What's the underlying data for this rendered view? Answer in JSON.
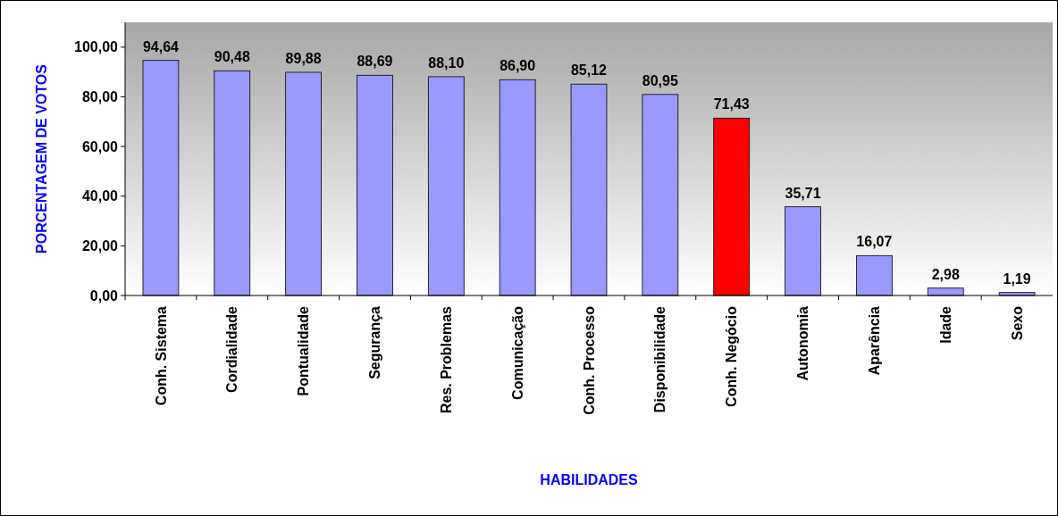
{
  "chart_data": {
    "type": "bar",
    "xlabel": "HABILIDADES",
    "ylabel": "PORCENTAGEM DE VOTOS",
    "categories": [
      "Conh. Sistema",
      "Cordialidade",
      "Pontualidade",
      "Segurança",
      "Res. Problemas",
      "Comunicação",
      "Conh. Processo",
      "Disponibilidade",
      "Conh. Negócio",
      "Autonomia",
      "Aparência",
      "Idade",
      "Sexo"
    ],
    "values": [
      94.64,
      90.48,
      89.88,
      88.69,
      88.1,
      86.9,
      85.12,
      80.95,
      71.43,
      35.71,
      16.07,
      2.98,
      1.19
    ],
    "value_labels": [
      "94,64",
      "90,48",
      "89,88",
      "88,69",
      "88,10",
      "86,90",
      "85,12",
      "80,95",
      "71,43",
      "35,71",
      "16,07",
      "2,98",
      "1,19"
    ],
    "colors": [
      "#9999ff",
      "#9999ff",
      "#9999ff",
      "#9999ff",
      "#9999ff",
      "#9999ff",
      "#9999ff",
      "#9999ff",
      "#ff0000",
      "#9999ff",
      "#9999ff",
      "#9999ff",
      "#9999ff"
    ],
    "ylim": [
      0,
      110
    ],
    "yticks": [
      {
        "value": 0,
        "label": "0,00"
      },
      {
        "value": 20,
        "label": "20,00"
      },
      {
        "value": 40,
        "label": "40,00"
      },
      {
        "value": 60,
        "label": "60,00"
      },
      {
        "value": 80,
        "label": "80,00"
      },
      {
        "value": 100,
        "label": "100,00"
      }
    ],
    "grid": false
  }
}
